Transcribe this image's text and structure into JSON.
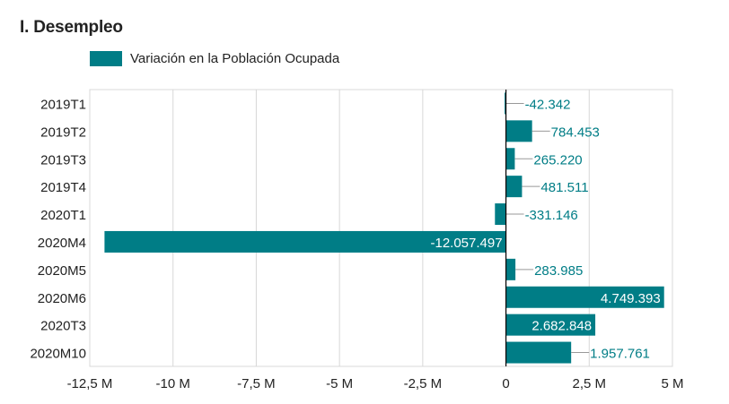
{
  "title": "I. Desempleo",
  "colors": {
    "bar": "#007d86",
    "grid": "#d8d8d8",
    "axis": "#000000",
    "label_out": "#007d86",
    "label_in": "#ffffff",
    "leader": "#999999"
  },
  "chart_data": {
    "type": "bar",
    "orientation": "horizontal",
    "title": "I. Desempleo",
    "legend_position": "top-left",
    "grid": true,
    "xlim": [
      -12500000,
      5000000
    ],
    "x_ticks": [
      -12500000,
      -10000000,
      -7500000,
      -5000000,
      -2500000,
      0,
      2500000,
      5000000
    ],
    "x_tick_labels": [
      "-12,5 M",
      "-10 M",
      "-7,5 M",
      "-5 M",
      "-2,5 M",
      "0",
      "2,5 M",
      "5 M"
    ],
    "categories": [
      "2019T1",
      "2019T2",
      "2019T3",
      "2019T4",
      "2020T1",
      "2020M4",
      "2020M5",
      "2020M6",
      "2020T3",
      "2020M10"
    ],
    "series": [
      {
        "name": "Variación en la Población Ocupada",
        "values": [
          -42342,
          784453,
          265220,
          481511,
          -331146,
          -12057497,
          283985,
          4749393,
          2682848,
          1957761
        ],
        "labels": [
          "-42.342",
          "784.453",
          "265.220",
          "481.511",
          "-331.146",
          "-12.057.497",
          "283.985",
          "4.749.393",
          "2.682.848",
          "1.957.761"
        ]
      }
    ]
  }
}
